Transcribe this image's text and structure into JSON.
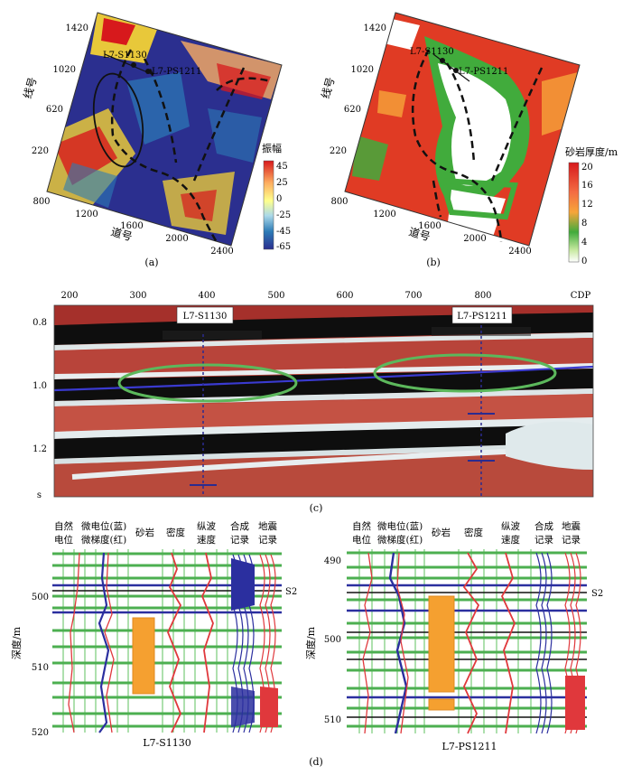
{
  "panel_a": {
    "caption": "(a)",
    "line_axis_label": "线号",
    "trace_axis_label": "道号",
    "line_ticks": [
      "1420",
      "1020",
      "620",
      "220"
    ],
    "trace_ticks": [
      "800",
      "1200",
      "1600",
      "2000",
      "2400"
    ],
    "well_1": "L7-S1130",
    "well_2": "L7-PS1211",
    "legend_title": "振幅",
    "legend_ticks": [
      "45",
      "25",
      "0",
      "-25",
      "-45",
      "-65"
    ],
    "colors": [
      "#d7191c",
      "#fdae61",
      "#ffff8c",
      "#abd9e9",
      "#2c7bb6",
      "#2b2f8f"
    ]
  },
  "panel_b": {
    "caption": "(b)",
    "line_axis_label": "线号",
    "trace_axis_label": "道号",
    "line_ticks": [
      "1420",
      "1020",
      "620",
      "220"
    ],
    "trace_ticks": [
      "800",
      "1200",
      "1600",
      "2000",
      "2400"
    ],
    "well_1": "L7-S1130",
    "well_2": "L7-PS1211",
    "legend_title": "砂岩厚度/m",
    "legend_ticks": [
      "20",
      "16",
      "12",
      "8",
      "4",
      "0"
    ],
    "colors": [
      "#ffffff",
      "#c7e9a0",
      "#41ab3c",
      "#f6a53a",
      "#e03b24",
      "#d7191c"
    ]
  },
  "panel_c": {
    "caption": "(c)",
    "cdp_ticks": [
      "200",
      "300",
      "400",
      "500",
      "600",
      "700",
      "800"
    ],
    "cdp_label": "CDP",
    "time_ticks": [
      "0.8",
      "1.0",
      "1.2"
    ],
    "time_unit": "s",
    "well_1": "L7-S1130",
    "well_2": "L7-PS1211"
  },
  "panel_d": {
    "caption": "(d)",
    "depth_label": "深度/m",
    "marker": "S2",
    "left": {
      "well": "L7-S1130",
      "columns": [
        {
          "line1": "自然",
          "line2": "电位"
        },
        {
          "line1": "微电位(蓝)",
          "line2": "微梯度(红)"
        },
        {
          "line1": "砂岩",
          "line2": ""
        },
        {
          "line1": "密度",
          "line2": ""
        },
        {
          "line1": "纵波",
          "line2": "速度"
        },
        {
          "line1": "合成",
          "line2": "记录"
        },
        {
          "line1": "地震",
          "line2": "记录"
        }
      ],
      "depth_ticks": [
        "500",
        "510",
        "520"
      ]
    },
    "right": {
      "well": "L7-PS1211",
      "columns": [
        {
          "line1": "自然",
          "line2": "电位"
        },
        {
          "line1": "微电位(蓝)",
          "line2": "微梯度(红)"
        },
        {
          "line1": "砂岩",
          "line2": ""
        },
        {
          "line1": "密度",
          "line2": ""
        },
        {
          "line1": "纵波",
          "line2": "速度"
        },
        {
          "line1": "合成",
          "line2": "记录"
        },
        {
          "line1": "地震",
          "line2": "记录"
        }
      ],
      "depth_ticks": [
        "490",
        "500",
        "510"
      ]
    }
  }
}
